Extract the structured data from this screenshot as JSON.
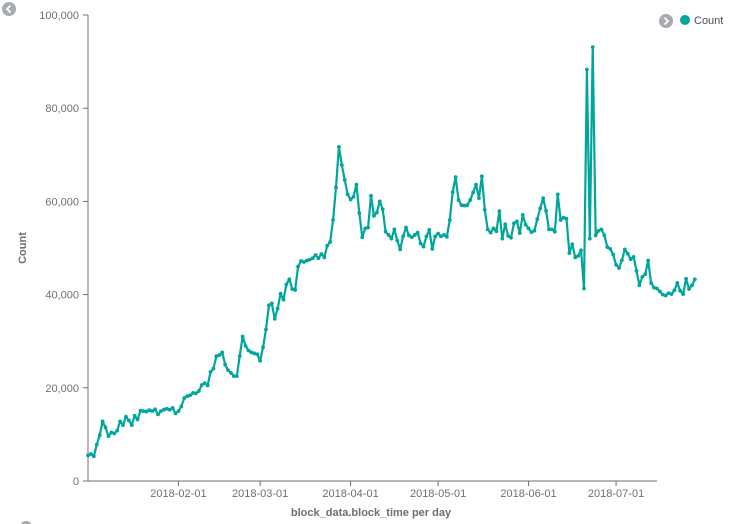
{
  "legend": {
    "toggle_icon": "chevron-right-icon"
  },
  "collapse_icon": "chevron-left-icon",
  "chart_data": {
    "type": "line",
    "xlabel": "block_data.block_time per day",
    "ylabel": "Count",
    "x_range": [
      "2018-01-01",
      "2018-07-14"
    ],
    "ylim": [
      0,
      100000
    ],
    "y_ticks": [
      0,
      20000,
      40000,
      60000,
      80000,
      100000
    ],
    "y_tick_labels": [
      "0",
      "20,000",
      "40,000",
      "60,000",
      "80,000",
      "100,000"
    ],
    "x_ticks": [
      "2018-02-01",
      "2018-03-01",
      "2018-04-01",
      "2018-05-01",
      "2018-06-01",
      "2018-07-01"
    ],
    "x_tick_labels": [
      "2018-02-01",
      "2018-03-01",
      "2018-04-01",
      "2018-05-01",
      "2018-06-01",
      "2018-07-01"
    ],
    "grid": false,
    "legend_position": "top-right",
    "color": "#00a69b",
    "start_date": "2018-01-01",
    "series": [
      {
        "name": "Count",
        "values": [
          5500,
          5800,
          5300,
          7800,
          9800,
          12800,
          11500,
          9600,
          10400,
          10200,
          10800,
          12800,
          12000,
          13800,
          13000,
          12000,
          14000,
          13200,
          15100,
          15000,
          14900,
          15200,
          15000,
          15400,
          14300,
          15000,
          15300,
          15500,
          15300,
          15700,
          14500,
          15000,
          16000,
          17800,
          18200,
          18400,
          18900,
          18800,
          19300,
          20600,
          21000,
          20500,
          23400,
          24100,
          26800,
          27000,
          27600,
          25000,
          23800,
          23200,
          22500,
          22500,
          26800,
          31000,
          29000,
          28000,
          27600,
          27400,
          27200,
          25800,
          28700,
          32500,
          37700,
          38100,
          34800,
          37000,
          40200,
          38900,
          42200,
          43300,
          41200,
          41000,
          46000,
          47200,
          47000,
          47300,
          47500,
          47800,
          48500,
          47800,
          48700,
          48000,
          50500,
          51300,
          56000,
          63000,
          71700,
          67800,
          64600,
          61500,
          60400,
          61000,
          63600,
          57500,
          52300,
          54200,
          54400,
          61200,
          56900,
          57600,
          60000,
          58300,
          53500,
          52800,
          52000,
          54000,
          51600,
          49700,
          52500,
          54400,
          52700,
          52300,
          52800,
          53300,
          51000,
          50300,
          52500,
          53900,
          49800,
          52500,
          53100,
          52500,
          52800,
          52400,
          56000,
          62000,
          65200,
          60300,
          59200,
          59100,
          59200,
          60300,
          61900,
          63600,
          60700,
          65400,
          58200,
          54000,
          53300,
          54200,
          53600,
          57900,
          52000,
          55100,
          52600,
          52200,
          55300,
          55700,
          53200,
          57100,
          55000,
          54200,
          53400,
          53700,
          56200,
          58500,
          60700,
          58000,
          54000,
          54000,
          53500,
          61500,
          56000,
          56500,
          56300,
          48900,
          50800,
          48000,
          48300,
          49500,
          41300,
          88300,
          52000,
          93100,
          52700,
          53700,
          54000,
          52700,
          50200,
          49800,
          48600,
          46400,
          45700,
          47400,
          49700,
          48800,
          47600,
          48100,
          45100,
          42000,
          43800,
          44400,
          47300,
          42500,
          41500,
          41300,
          40700,
          40000,
          39800,
          40300,
          40100,
          40900,
          42500,
          40800,
          40100,
          43400,
          41200,
          42000,
          43300
        ]
      }
    ]
  }
}
